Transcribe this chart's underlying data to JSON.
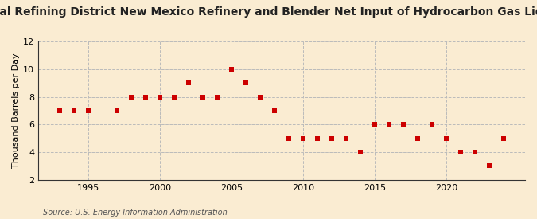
{
  "title": "Annual Refining District New Mexico Refinery and Blender Net Input of Hydrocarbon Gas Liquids",
  "ylabel": "Thousand Barrels per Day",
  "source": "Source: U.S. Energy Information Administration",
  "background_color": "#faecd2",
  "plot_bg_color": "#faecd2",
  "years": [
    1993,
    1994,
    1995,
    1997,
    1998,
    1999,
    2000,
    2001,
    2002,
    2003,
    2004,
    2005,
    2006,
    2007,
    2008,
    2009,
    2010,
    2011,
    2012,
    2013,
    2014,
    2015,
    2016,
    2017,
    2018,
    2019,
    2020,
    2021,
    2022,
    2023,
    2024
  ],
  "values": [
    7,
    7,
    7,
    7,
    8,
    8,
    8,
    8,
    9,
    8,
    8,
    10,
    9,
    8,
    7,
    5,
    5,
    5,
    5,
    5,
    4,
    6,
    6,
    6,
    5,
    6,
    5,
    4,
    4,
    3,
    5
  ],
  "marker_color": "#cc0000",
  "marker_size": 4,
  "ylim": [
    2,
    12
  ],
  "yticks": [
    2,
    4,
    6,
    8,
    10,
    12
  ],
  "xlim": [
    1991.5,
    2025.5
  ],
  "xticks": [
    1995,
    2000,
    2005,
    2010,
    2015,
    2020
  ],
  "grid_color": "#bbbbbb",
  "title_fontsize": 10,
  "label_fontsize": 8,
  "tick_fontsize": 8,
  "source_fontsize": 7
}
